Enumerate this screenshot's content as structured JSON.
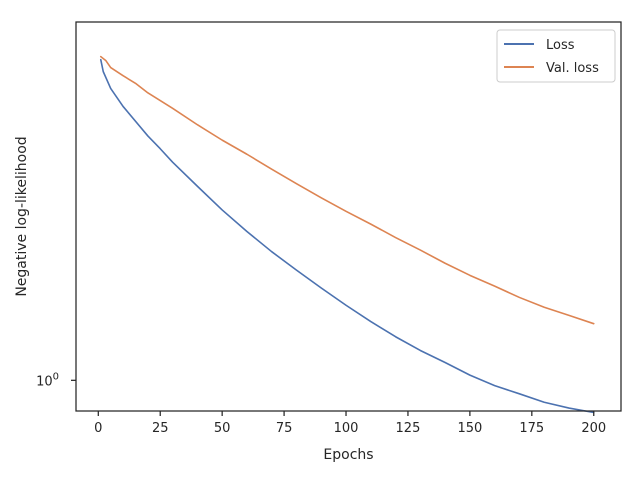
{
  "chart_data": {
    "type": "line",
    "title": "",
    "xlabel": "Epochs",
    "ylabel": "Negative log-likelihood",
    "x_ticks": [
      0,
      25,
      50,
      75,
      100,
      125,
      150,
      175,
      200
    ],
    "xlim": [
      -9,
      211
    ],
    "y_scale": "log",
    "ylim": [
      0.89,
      3.9
    ],
    "y_ticks": [
      1.0
    ],
    "y_tick_labels": [
      "10^0"
    ],
    "grid": false,
    "legend_position": "top-right",
    "series": [
      {
        "name": "Loss",
        "color": "#4c72b0",
        "x": [
          1,
          2,
          5,
          10,
          20,
          25,
          30,
          40,
          50,
          60,
          70,
          80,
          90,
          100,
          110,
          120,
          130,
          140,
          150,
          160,
          170,
          180,
          190,
          200
        ],
        "y": [
          3.38,
          3.23,
          3.03,
          2.83,
          2.53,
          2.41,
          2.29,
          2.09,
          1.91,
          1.76,
          1.63,
          1.52,
          1.42,
          1.33,
          1.25,
          1.18,
          1.12,
          1.07,
          1.02,
          0.98,
          0.95,
          0.92,
          0.9,
          0.885
        ]
      },
      {
        "name": "Val. loss",
        "color": "#dd8452",
        "x": [
          1,
          3,
          5,
          10,
          15,
          20,
          30,
          40,
          50,
          60,
          70,
          80,
          90,
          100,
          110,
          120,
          130,
          140,
          150,
          160,
          170,
          180,
          190,
          200
        ],
        "y": [
          3.42,
          3.37,
          3.28,
          3.18,
          3.09,
          2.98,
          2.81,
          2.64,
          2.49,
          2.36,
          2.23,
          2.11,
          2.0,
          1.9,
          1.81,
          1.72,
          1.64,
          1.56,
          1.49,
          1.43,
          1.37,
          1.32,
          1.28,
          1.24
        ]
      }
    ]
  }
}
